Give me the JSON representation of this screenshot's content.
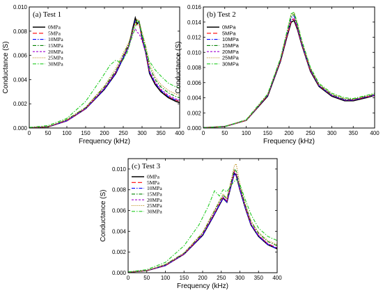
{
  "chart_data": [
    {
      "type": "line",
      "title": "(a) Test 1",
      "xlabel": "Frequency (kHz)",
      "ylabel": "Conductance (S)",
      "xlim": [
        0,
        400
      ],
      "ylim": [
        0,
        0.01
      ],
      "xticks": [
        "0",
        "50",
        "100",
        "150",
        "200",
        "250",
        "300",
        "350",
        "400"
      ],
      "yticks": [
        "0.000",
        "0.002",
        "0.004",
        "0.006",
        "0.008",
        "0.010"
      ],
      "legend_position": "top-left",
      "series": [
        {
          "name": "0MPa",
          "color": "#000000",
          "dash": "solid",
          "x": [
            0,
            50,
            100,
            150,
            200,
            230,
            250,
            265,
            275,
            282,
            287,
            292,
            300,
            310,
            320,
            335,
            350,
            370,
            390,
            400
          ],
          "y": [
            3e-05,
            0.0001,
            0.0006,
            0.0016,
            0.0032,
            0.0045,
            0.0058,
            0.0068,
            0.0082,
            0.0091,
            0.0086,
            0.0088,
            0.0074,
            0.0062,
            0.0045,
            0.0036,
            0.003,
            0.0025,
            0.0022,
            0.0021
          ]
        },
        {
          "name": "5MPa",
          "color": "#ff0000",
          "dash": "long-dash",
          "x": [
            0,
            50,
            100,
            150,
            200,
            230,
            250,
            265,
            275,
            282,
            287,
            292,
            300,
            310,
            320,
            335,
            350,
            370,
            390,
            400
          ],
          "y": [
            3e-05,
            0.0001,
            0.0006,
            0.0016,
            0.0033,
            0.0046,
            0.0059,
            0.0069,
            0.008,
            0.0088,
            0.0085,
            0.0086,
            0.0074,
            0.0063,
            0.0046,
            0.0037,
            0.0031,
            0.0026,
            0.0023,
            0.0022
          ]
        },
        {
          "name": "10MPa",
          "color": "#0000ff",
          "dash": "dash-dot",
          "x": [
            0,
            50,
            100,
            150,
            200,
            230,
            250,
            265,
            275,
            282,
            287,
            292,
            300,
            310,
            320,
            335,
            350,
            370,
            390,
            400
          ],
          "y": [
            3e-05,
            0.0001,
            0.0006,
            0.0016,
            0.0032,
            0.0045,
            0.0058,
            0.0068,
            0.0081,
            0.0089,
            0.0087,
            0.0087,
            0.0075,
            0.0063,
            0.0046,
            0.0037,
            0.0031,
            0.0026,
            0.0023,
            0.0023
          ]
        },
        {
          "name": "15MPa",
          "color": "#008000",
          "dash": "dash-dot",
          "x": [
            0,
            50,
            100,
            150,
            200,
            230,
            250,
            265,
            275,
            282,
            287,
            292,
            300,
            310,
            320,
            335,
            350,
            370,
            390,
            400
          ],
          "y": [
            3e-05,
            0.0001,
            0.0007,
            0.0017,
            0.0034,
            0.0047,
            0.006,
            0.007,
            0.008,
            0.0087,
            0.0089,
            0.0088,
            0.0078,
            0.0066,
            0.005,
            0.004,
            0.0034,
            0.0029,
            0.0026,
            0.0025
          ]
        },
        {
          "name": "20MPa",
          "color": "#a000d0",
          "dash": "dash",
          "x": [
            0,
            50,
            100,
            150,
            200,
            230,
            250,
            265,
            275,
            282,
            287,
            292,
            300,
            310,
            320,
            335,
            350,
            370,
            390,
            400
          ],
          "y": [
            3e-05,
            0.0001,
            0.0006,
            0.0016,
            0.0033,
            0.0046,
            0.0059,
            0.0068,
            0.0078,
            0.0082,
            0.0079,
            0.0078,
            0.0072,
            0.0062,
            0.0047,
            0.0038,
            0.0032,
            0.0027,
            0.0024,
            0.0023
          ]
        },
        {
          "name": "25MPa",
          "color": "#b8860b",
          "dash": "dot",
          "x": [
            0,
            50,
            100,
            150,
            200,
            230,
            250,
            265,
            275,
            282,
            287,
            292,
            300,
            310,
            320,
            335,
            350,
            370,
            390,
            400
          ],
          "y": [
            3e-05,
            0.0001,
            0.0007,
            0.0017,
            0.0035,
            0.0049,
            0.0062,
            0.0071,
            0.0081,
            0.0087,
            0.009,
            0.0088,
            0.0079,
            0.0068,
            0.0053,
            0.0042,
            0.0036,
            0.0031,
            0.0028,
            0.0027
          ]
        },
        {
          "name": "30MPa",
          "color": "#22cc22",
          "dash": "dash-dot",
          "x": [
            0,
            50,
            100,
            150,
            190,
            215,
            230,
            245,
            260,
            270,
            280,
            287,
            292,
            300,
            310,
            320,
            335,
            350,
            370,
            390,
            400
          ],
          "y": [
            5e-05,
            0.0002,
            0.0008,
            0.0022,
            0.004,
            0.0052,
            0.0056,
            0.0054,
            0.0062,
            0.0072,
            0.0081,
            0.0089,
            0.0087,
            0.0077,
            0.0064,
            0.0055,
            0.0048,
            0.0043,
            0.0037,
            0.0034,
            0.0033
          ]
        }
      ]
    },
    {
      "type": "line",
      "title": "(b) Test 2",
      "xlabel": "Frequency (kHz)",
      "ylabel": "Conductance (S)",
      "xlim": [
        0,
        400
      ],
      "ylim": [
        0,
        0.016
      ],
      "xticks": [
        "0",
        "50",
        "100",
        "150",
        "200",
        "250",
        "300",
        "350",
        "400"
      ],
      "yticks": [
        "0.000",
        "0.002",
        "0.004",
        "0.006",
        "0.008",
        "0.010",
        "0.012",
        "0.014",
        "0.016"
      ],
      "legend_position": "top-left",
      "series": [
        {
          "name": "0MPa",
          "color": "#000000",
          "dash": "solid",
          "x": [
            0,
            50,
            100,
            150,
            180,
            195,
            205,
            212,
            220,
            230,
            250,
            270,
            300,
            330,
            350,
            380,
            400
          ],
          "y": [
            5e-05,
            0.0002,
            0.001,
            0.0042,
            0.0088,
            0.012,
            0.014,
            0.0142,
            0.013,
            0.011,
            0.0075,
            0.0055,
            0.0042,
            0.0036,
            0.0036,
            0.004,
            0.0043
          ]
        },
        {
          "name": "5MPa",
          "color": "#ff0000",
          "dash": "long-dash",
          "x": [
            0,
            50,
            100,
            150,
            180,
            195,
            205,
            212,
            220,
            230,
            250,
            270,
            300,
            330,
            350,
            380,
            400
          ],
          "y": [
            5e-05,
            0.0002,
            0.001,
            0.0043,
            0.0089,
            0.0121,
            0.0142,
            0.0144,
            0.0131,
            0.0111,
            0.0076,
            0.0056,
            0.0043,
            0.0037,
            0.0037,
            0.0041,
            0.0043
          ]
        },
        {
          "name": "10MPa",
          "color": "#0000ff",
          "dash": "dash-dot",
          "x": [
            0,
            50,
            100,
            150,
            180,
            195,
            205,
            212,
            220,
            230,
            250,
            270,
            300,
            330,
            350,
            380,
            400
          ],
          "y": [
            5e-05,
            0.0002,
            0.001,
            0.0043,
            0.009,
            0.0123,
            0.0146,
            0.0148,
            0.0133,
            0.0112,
            0.0077,
            0.0056,
            0.0043,
            0.0037,
            0.0037,
            0.0041,
            0.0044
          ]
        },
        {
          "name": "15MPa",
          "color": "#008000",
          "dash": "dash-dot",
          "x": [
            0,
            50,
            100,
            150,
            180,
            195,
            205,
            212,
            220,
            230,
            250,
            270,
            300,
            330,
            350,
            380,
            400
          ],
          "y": [
            5e-05,
            0.0002,
            0.001,
            0.0044,
            0.0091,
            0.0125,
            0.0148,
            0.015,
            0.0135,
            0.0113,
            0.0078,
            0.0057,
            0.0044,
            0.0038,
            0.0038,
            0.0042,
            0.0044
          ]
        },
        {
          "name": "20MPa",
          "color": "#a000d0",
          "dash": "dash",
          "x": [
            0,
            50,
            100,
            150,
            180,
            195,
            205,
            212,
            220,
            230,
            250,
            270,
            300,
            330,
            350,
            380,
            400
          ],
          "y": [
            5e-05,
            0.0002,
            0.001,
            0.0043,
            0.0089,
            0.0122,
            0.0143,
            0.0145,
            0.0132,
            0.0111,
            0.0076,
            0.0056,
            0.0043,
            0.0037,
            0.0037,
            0.0041,
            0.0043
          ]
        },
        {
          "name": "25MPa",
          "color": "#b8860b",
          "dash": "dot",
          "x": [
            0,
            50,
            100,
            150,
            180,
            195,
            205,
            212,
            220,
            230,
            250,
            270,
            300,
            330,
            350,
            380,
            400
          ],
          "y": [
            5e-05,
            0.0002,
            0.001,
            0.0044,
            0.0091,
            0.0126,
            0.015,
            0.0152,
            0.0136,
            0.0114,
            0.0079,
            0.0058,
            0.0045,
            0.0039,
            0.0038,
            0.0042,
            0.0045
          ]
        },
        {
          "name": "30MPa",
          "color": "#22cc22",
          "dash": "dash-dot",
          "x": [
            0,
            50,
            100,
            150,
            180,
            195,
            205,
            212,
            220,
            230,
            250,
            270,
            300,
            330,
            350,
            380,
            400
          ],
          "y": [
            5e-05,
            0.0002,
            0.0011,
            0.0045,
            0.0092,
            0.0127,
            0.0151,
            0.0153,
            0.0138,
            0.0116,
            0.008,
            0.0059,
            0.0046,
            0.004,
            0.0039,
            0.0043,
            0.0046
          ]
        }
      ]
    },
    {
      "type": "line",
      "title": "(c) Test 3",
      "xlabel": "Frequency (kHz)",
      "ylabel": "Conductance (S)",
      "xlim": [
        0,
        400
      ],
      "ylim": [
        0,
        0.011
      ],
      "xticks": [
        "0",
        "50",
        "100",
        "150",
        "200",
        "250",
        "300",
        "350",
        "400"
      ],
      "yticks": [
        "0.000",
        "0.002",
        "0.004",
        "0.006",
        "0.008",
        "0.010"
      ],
      "legend_position": "top-left",
      "series": [
        {
          "name": "0MPa",
          "color": "#000000",
          "dash": "solid",
          "x": [
            0,
            50,
            100,
            150,
            200,
            225,
            240,
            255,
            265,
            275,
            285,
            290,
            300,
            315,
            330,
            350,
            375,
            400
          ],
          "y": [
            5e-05,
            0.0002,
            0.0007,
            0.0018,
            0.0036,
            0.0052,
            0.0062,
            0.0072,
            0.0068,
            0.0082,
            0.0096,
            0.0094,
            0.008,
            0.0062,
            0.0046,
            0.0035,
            0.0027,
            0.0023
          ]
        },
        {
          "name": "5MPa",
          "color": "#ff0000",
          "dash": "long-dash",
          "x": [
            0,
            50,
            100,
            150,
            200,
            225,
            240,
            255,
            265,
            275,
            285,
            290,
            300,
            315,
            330,
            350,
            375,
            400
          ],
          "y": [
            5e-05,
            0.0002,
            0.0007,
            0.0018,
            0.0037,
            0.0053,
            0.0063,
            0.0073,
            0.0069,
            0.0083,
            0.0098,
            0.0096,
            0.0081,
            0.0063,
            0.0047,
            0.0036,
            0.0028,
            0.0024
          ]
        },
        {
          "name": "10MPa",
          "color": "#0000ff",
          "dash": "dash-dot",
          "x": [
            0,
            50,
            100,
            150,
            200,
            225,
            240,
            255,
            265,
            275,
            285,
            290,
            300,
            315,
            330,
            350,
            375,
            400
          ],
          "y": [
            5e-05,
            0.0002,
            0.0007,
            0.0018,
            0.0036,
            0.0052,
            0.0062,
            0.0072,
            0.0068,
            0.0082,
            0.0095,
            0.0094,
            0.008,
            0.0062,
            0.0046,
            0.0035,
            0.0027,
            0.0023
          ]
        },
        {
          "name": "15MPa",
          "color": "#008000",
          "dash": "dash-dot",
          "x": [
            0,
            50,
            100,
            150,
            200,
            225,
            240,
            255,
            265,
            275,
            285,
            290,
            300,
            315,
            330,
            350,
            375,
            400
          ],
          "y": [
            5e-05,
            0.0002,
            0.0008,
            0.0019,
            0.0038,
            0.0055,
            0.0065,
            0.0075,
            0.0071,
            0.0085,
            0.01,
            0.0098,
            0.0083,
            0.0065,
            0.0049,
            0.0038,
            0.003,
            0.0026
          ]
        },
        {
          "name": "20MPa",
          "color": "#a000d0",
          "dash": "dash",
          "x": [
            0,
            50,
            100,
            150,
            200,
            225,
            240,
            255,
            265,
            275,
            285,
            290,
            300,
            315,
            330,
            350,
            375,
            400
          ],
          "y": [
            5e-05,
            0.0002,
            0.0007,
            0.0018,
            0.0037,
            0.0053,
            0.0063,
            0.0073,
            0.0069,
            0.0083,
            0.0097,
            0.0095,
            0.0081,
            0.0063,
            0.0047,
            0.0036,
            0.0028,
            0.0024
          ]
        },
        {
          "name": "25MPa",
          "color": "#b8860b",
          "dash": "dot",
          "x": [
            0,
            50,
            100,
            150,
            200,
            225,
            240,
            255,
            265,
            275,
            285,
            290,
            300,
            315,
            330,
            350,
            375,
            400
          ],
          "y": [
            5e-05,
            0.0002,
            0.0008,
            0.0019,
            0.0039,
            0.0056,
            0.0066,
            0.0076,
            0.0072,
            0.0087,
            0.0103,
            0.0105,
            0.0086,
            0.0066,
            0.005,
            0.0039,
            0.0031,
            0.0027
          ]
        },
        {
          "name": "30MPa",
          "color": "#22cc22",
          "dash": "dash-dot",
          "x": [
            0,
            50,
            100,
            150,
            190,
            215,
            232,
            245,
            255,
            265,
            280,
            290,
            300,
            315,
            330,
            350,
            375,
            400
          ],
          "y": [
            8e-05,
            0.0003,
            0.001,
            0.0026,
            0.0046,
            0.0064,
            0.0079,
            0.0074,
            0.008,
            0.0078,
            0.0086,
            0.009,
            0.0085,
            0.007,
            0.0056,
            0.0043,
            0.0035,
            0.0031
          ]
        }
      ]
    }
  ]
}
